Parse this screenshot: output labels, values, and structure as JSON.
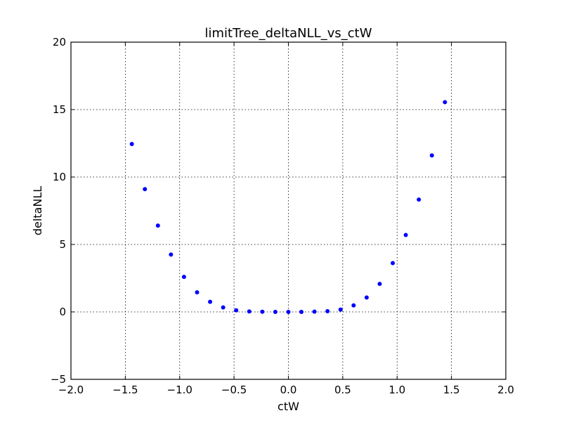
{
  "chart_data": {
    "type": "scatter",
    "title": "limitTree_deltaNLL_vs_ctW",
    "xlabel": "ctW",
    "ylabel": "deltaNLL",
    "xlim": [
      -2.0,
      2.0
    ],
    "ylim": [
      -5,
      20
    ],
    "xticks": [
      -2.0,
      -1.5,
      -1.0,
      -0.5,
      0.0,
      0.5,
      1.0,
      1.5,
      2.0
    ],
    "xtick_labels": [
      "−2.0",
      "−1.5",
      "−1.0",
      "−0.5",
      "0.0",
      "0.5",
      "1.0",
      "1.5",
      "2.0"
    ],
    "yticks": [
      -5,
      0,
      5,
      10,
      15,
      20
    ],
    "ytick_labels": [
      "−5",
      "0",
      "5",
      "10",
      "15",
      "20"
    ],
    "grid": true,
    "marker_color": "#0000ff",
    "series": [
      {
        "x": [
          -1.44,
          -1.32,
          -1.2,
          -1.08,
          -0.96,
          -0.84,
          -0.72,
          -0.6,
          -0.48,
          -0.36,
          -0.24,
          -0.12,
          0.0,
          0.12,
          0.24,
          0.36,
          0.48,
          0.6,
          0.72,
          0.84,
          0.96,
          1.08,
          1.2,
          1.32,
          1.44
        ],
        "y": [
          12.45,
          9.1,
          6.4,
          4.25,
          2.6,
          1.45,
          0.75,
          0.33,
          0.12,
          0.03,
          0.01,
          0.0,
          0.0,
          0.0,
          0.02,
          0.05,
          0.17,
          0.48,
          1.07,
          2.08,
          3.62,
          5.7,
          8.33,
          11.6,
          15.55
        ]
      }
    ]
  }
}
